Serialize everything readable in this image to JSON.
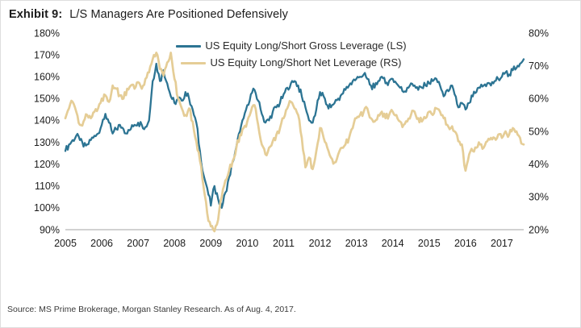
{
  "title": {
    "label": "Exhibit 9:",
    "text": "L/S Managers Are Positioned Defensively"
  },
  "source": "Source: MS Prime Brokerage, Morgan Stanley Research. As of Aug. 4, 2017.",
  "colors": {
    "gross_line": "#2c7493",
    "net_line": "#e5cd96",
    "axis_line": "#a6a6a6",
    "tick_text": "#1c1c1c"
  },
  "chart_data": {
    "type": "line",
    "title": "",
    "xlabel": "",
    "ylabel_left": "Gross Leverage (LS)",
    "ylabel_right": "Net Leverage (RS)",
    "grid": false,
    "legend_position": "top-center",
    "x_start": 2005.0,
    "x_step": 0.1,
    "x_end": 2017.6,
    "x_tick_labels": [
      "2005",
      "2006",
      "2007",
      "2008",
      "2009",
      "2010",
      "2011",
      "2012",
      "2013",
      "2014",
      "2015",
      "2016",
      "2017"
    ],
    "left_axis": {
      "min": 90,
      "max": 180,
      "ticks": [
        "180%",
        "170%",
        "160%",
        "150%",
        "140%",
        "130%",
        "120%",
        "110%",
        "100%",
        "90%"
      ]
    },
    "right_axis": {
      "min": 20,
      "max": 80,
      "ticks": [
        "80%",
        "70%",
        "60%",
        "50%",
        "40%",
        "30%",
        "20%"
      ]
    },
    "series": [
      {
        "name": "US Equity Long/Short Gross Leverage (LS)",
        "axis": "left",
        "color": "#2c7493",
        "values": [
          126,
          129,
          131,
          133,
          131,
          128,
          129,
          131,
          133,
          134,
          138,
          143,
          139,
          134,
          136,
          138,
          136,
          134,
          136,
          138,
          139,
          138,
          137,
          140,
          158,
          166,
          158,
          163,
          157,
          151,
          148,
          150,
          149,
          153,
          150,
          145,
          139,
          126,
          115,
          109,
          101,
          110,
          104,
          100,
          107,
          114,
          121,
          128,
          135,
          141,
          147,
          152,
          154,
          149,
          143,
          139,
          140,
          144,
          146,
          148,
          152,
          155,
          157,
          158,
          156,
          151,
          146,
          140,
          139,
          145,
          153,
          151,
          147,
          146,
          148,
          150,
          152,
          154,
          156,
          158,
          159,
          160,
          161,
          159,
          156,
          155,
          158,
          160,
          157,
          158,
          159,
          157,
          155,
          153,
          155,
          157,
          156,
          154,
          155,
          156,
          157,
          158,
          159,
          156,
          151,
          154,
          156,
          152,
          146,
          148,
          145,
          148,
          151,
          153,
          155,
          156,
          157,
          156,
          158,
          159,
          160,
          162,
          161,
          163,
          164,
          166,
          168
        ]
      },
      {
        "name": "US Equity Long/Short Net Leverage (RS)",
        "axis": "right",
        "color": "#e5cd96",
        "values": [
          54,
          57,
          59,
          56,
          52,
          53,
          55,
          54,
          56,
          57,
          60,
          61,
          59,
          64,
          63,
          61,
          60,
          63,
          64,
          63,
          65,
          63,
          66,
          68,
          72,
          74,
          69,
          67,
          71,
          74,
          66,
          60,
          57,
          55,
          57,
          53,
          47,
          41,
          33,
          25,
          21,
          19.5,
          23,
          30,
          35,
          38,
          41,
          45,
          49,
          51,
          53,
          56,
          58,
          52,
          46,
          43,
          45,
          47,
          49,
          51,
          54,
          57,
          59,
          57,
          55,
          48,
          39,
          42,
          38.5,
          44,
          51,
          48,
          45,
          42,
          40.5,
          43,
          45,
          46,
          48,
          51,
          54,
          55,
          56,
          57,
          54,
          53,
          55,
          56,
          54,
          55,
          56,
          55,
          53,
          52,
          53,
          55,
          56,
          54,
          53,
          54,
          56,
          55,
          57,
          56,
          54,
          52,
          51,
          50,
          47,
          46,
          38,
          43,
          44,
          45,
          46,
          45,
          47,
          48,
          48,
          49,
          48,
          50,
          49,
          51,
          50,
          48,
          46
        ]
      }
    ]
  }
}
